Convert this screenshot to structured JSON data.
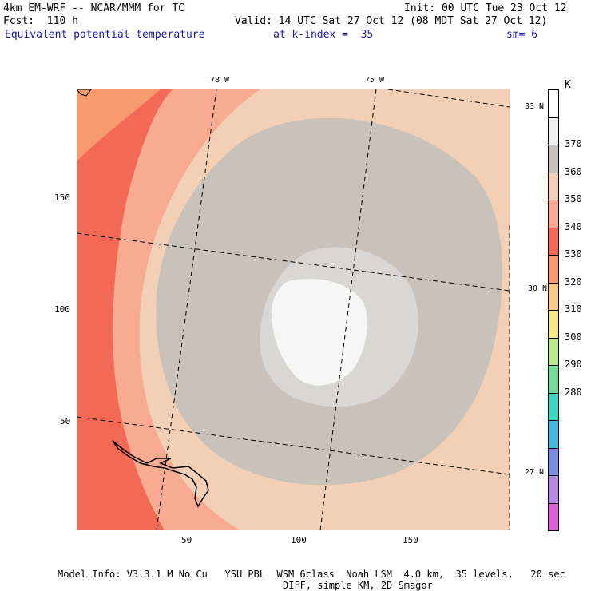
{
  "header": {
    "model": "4km EM-WRF -- NCAR/MMM for TC",
    "init": "Init: 00 UTC Tue 23 Oct 12",
    "forecast": "Fcst:  110 h",
    "valid": "Valid: 14 UTC Sat 27 Oct 12 (08 MDT Sat 27 Oct 12)",
    "field": "Equivalent potential temperature",
    "level": "at k-index =  35",
    "smoothing": "sm= 6"
  },
  "x_axis": {
    "ticks": [
      "50",
      "100",
      "150"
    ]
  },
  "y_axis": {
    "ticks": [
      "150",
      "100",
      "50"
    ]
  },
  "lon_labels": [
    "78 W",
    "75 W"
  ],
  "lat_labels": [
    "33 N",
    "30 N",
    "27 N"
  ],
  "colorbar": {
    "unit": "K",
    "labels": [
      "370",
      "360",
      "350",
      "340",
      "330",
      "320",
      "310",
      "300",
      "290",
      "280"
    ],
    "colors": [
      "#ffffff",
      "#eeeeee",
      "#c9c2bb",
      "#f2cfb5",
      "#f9ab91",
      "#f26a55",
      "#f79a6d",
      "#f8c987",
      "#f5ea86",
      "#bce98c",
      "#72dd9a",
      "#3bd8c4",
      "#44b9dd",
      "#7a8ee0",
      "#b58ae0",
      "#dc5fd7"
    ]
  },
  "colors": {
    "header_blue": "#1a1aa8",
    "outer_red": "#f26a55",
    "salmon": "#f9ab91",
    "peach": "#f2cfb5",
    "gray": "#c9c2bb",
    "light_gray": "#d9d7d4",
    "white_core": "#f6f6f6"
  },
  "footer": {
    "line1": "Model Info: V3.3.1 M No Cu   YSU PBL  WSM 6class  Noah LSM  4.0 km,  35 levels,   20 sec",
    "line2": "DIFF, simple KM, 2D Smagor"
  }
}
